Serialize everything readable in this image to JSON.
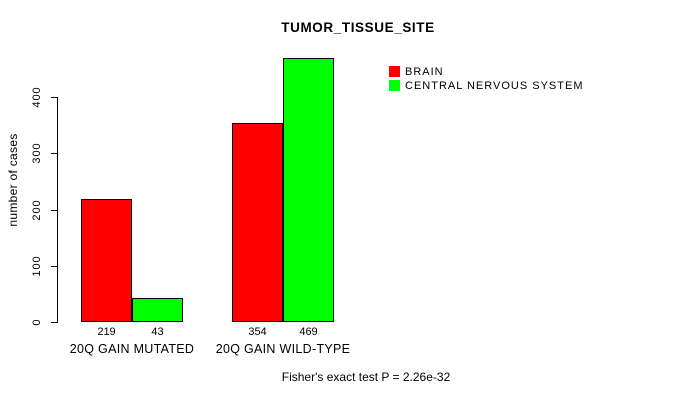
{
  "page": {
    "background": "#ffffff",
    "text_color": "#000000"
  },
  "chart_data": {
    "type": "bar",
    "title": "TUMOR_TISSUE_SITE",
    "ylabel": "number of cases",
    "xlabel": "",
    "categories": [
      "20Q GAIN MUTATED",
      "20Q GAIN WILD-TYPE"
    ],
    "series": [
      {
        "name": "BRAIN",
        "color": "#ff0000",
        "values": [
          219,
          354
        ]
      },
      {
        "name": "CENTRAL NERVOUS SYSTEM",
        "color": "#00ff00",
        "values": [
          43,
          469
        ]
      }
    ],
    "bar_value_labels": [
      [
        "219",
        "43"
      ],
      [
        "354",
        "469"
      ]
    ],
    "yticks": [
      0,
      100,
      200,
      300,
      400
    ],
    "ylim": [
      0,
      475
    ],
    "grid": false,
    "legend_position": "top-right",
    "bar_border_color": "#000000",
    "annotation": "Fisher's exact test P = 2.26e-32"
  }
}
